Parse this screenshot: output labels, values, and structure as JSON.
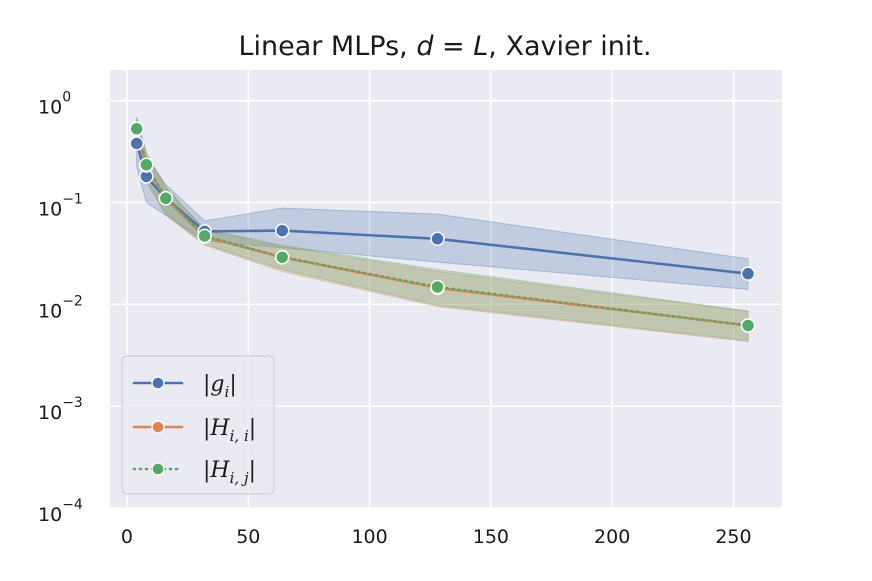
{
  "chart_data": {
    "type": "line",
    "title": "Linear MLPs, d = L, Xavier init.",
    "title_parts": [
      "Linear MLPs, ",
      "d",
      " = ",
      "L",
      ", Xavier init."
    ],
    "xlabel": "",
    "ylabel": "",
    "xlim": [
      -7,
      270
    ],
    "ylim": [
      0.0001,
      2.0
    ],
    "yscale": "log",
    "grid": true,
    "legend_position": "lower-left",
    "x_ticks": [
      0,
      50,
      100,
      150,
      200,
      250
    ],
    "x_tick_labels": [
      "0",
      "50",
      "100",
      "150",
      "200",
      "250"
    ],
    "y_ticks": [
      1,
      0.1,
      0.01,
      0.001,
      0.0001
    ],
    "y_tick_labels": [
      {
        "base": "10",
        "exp": "0"
      },
      {
        "base": "10",
        "exp": "−1"
      },
      {
        "base": "10",
        "exp": "−2"
      },
      {
        "base": "10",
        "exp": "−3"
      },
      {
        "base": "10",
        "exp": "−4"
      }
    ],
    "x": [
      4,
      8,
      16,
      32,
      64,
      128,
      256
    ],
    "series": [
      {
        "name": "|g_i|",
        "legend_parts": [
          "|",
          "g",
          "i",
          "|"
        ],
        "color": "#4c72b0",
        "dash": "solid",
        "values": [
          0.38,
          0.18,
          0.11,
          0.052,
          0.053,
          0.044,
          0.02
        ],
        "lower": [
          0.22,
          0.1,
          0.075,
          0.042,
          0.036,
          0.026,
          0.014
        ],
        "upper": [
          0.6,
          0.28,
          0.15,
          0.066,
          0.088,
          0.077,
          0.028
        ]
      },
      {
        "name": "|H_{i,i}|",
        "legend_parts": [
          "|",
          "H",
          "i, i",
          "|"
        ],
        "color": "#dd8452",
        "dash": "solid",
        "values": [
          0.52,
          0.23,
          0.11,
          0.046,
          0.029,
          0.0145,
          0.0062
        ],
        "lower": [
          0.4,
          0.16,
          0.075,
          0.038,
          0.021,
          0.0095,
          0.0043
        ],
        "upper": [
          0.68,
          0.3,
          0.14,
          0.054,
          0.037,
          0.021,
          0.0085
        ]
      },
      {
        "name": "|H_{i,j}|",
        "legend_parts": [
          "|",
          "H",
          "i, j",
          "|"
        ],
        "color": "#55a868",
        "dash": "dotted",
        "values": [
          0.53,
          0.235,
          0.11,
          0.047,
          0.029,
          0.0148,
          0.0062
        ],
        "lower": [
          0.41,
          0.165,
          0.077,
          0.039,
          0.022,
          0.0098,
          0.0044
        ],
        "upper": [
          0.69,
          0.31,
          0.14,
          0.055,
          0.038,
          0.022,
          0.0086
        ]
      }
    ]
  }
}
